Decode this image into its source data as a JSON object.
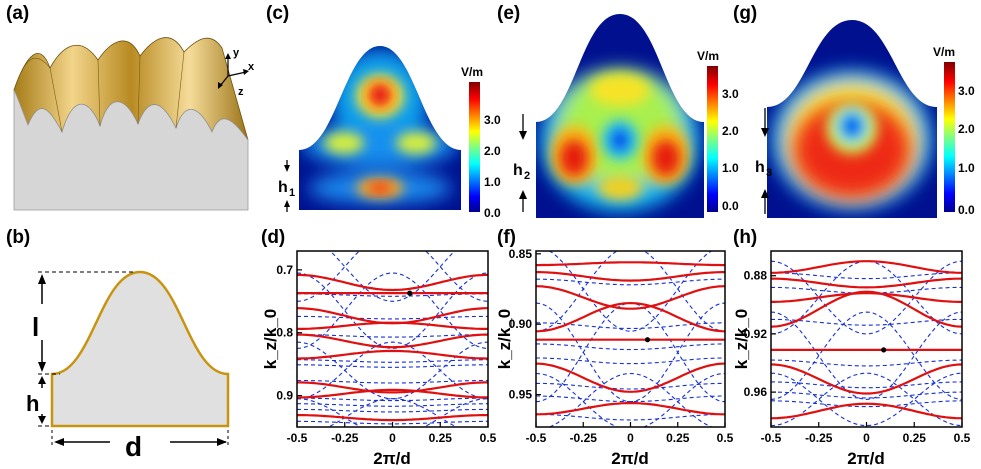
{
  "panel_labels": {
    "a": "(a)",
    "b": "(b)",
    "c": "(c)",
    "d": "(d)",
    "e": "(e)",
    "f": "(f)",
    "g": "(g)",
    "h": "(h)"
  },
  "axes_3d": {
    "x": "x",
    "y": "y",
    "z": "z"
  },
  "profile": {
    "l": "l",
    "h": "h",
    "d": "d"
  },
  "heights": {
    "h1_main": "h",
    "h1_sub": "1",
    "h2_main": "h",
    "h2_sub": "2",
    "h3_main": "h",
    "h3_sub": "3"
  },
  "colorbar": {
    "unit": "V/m",
    "ticks": [
      "3.0",
      "2.0",
      "1.0",
      "0.0"
    ]
  },
  "colors": {
    "red": "#e01010",
    "blue": "#1530d8",
    "gold": "#c8930e",
    "gray": "#d9d9d9"
  },
  "chart_data": [
    {
      "type": "line",
      "panel": "d",
      "title": "",
      "xlabel": "2π/d",
      "ylabel": "k_z/k_0",
      "x_ticks": [
        "-0.5",
        "-0.25",
        "0",
        "0.25",
        "0.5"
      ],
      "y_ticks": [
        "0.7",
        "0.8",
        "0.9"
      ],
      "xlim": [
        -0.5,
        0.5
      ],
      "ylim": [
        0.67,
        0.95
      ],
      "red_bands": [
        {
          "y0": 0.72,
          "a": 0.012,
          "s": -1
        },
        {
          "y0": 0.737,
          "a": 0.0,
          "s": 1
        },
        {
          "y0": 0.773,
          "a": 0.012,
          "s": -1
        },
        {
          "y0": 0.789,
          "a": 0.005,
          "s": 1
        },
        {
          "y0": 0.813,
          "a": 0.01,
          "s": -1
        },
        {
          "y0": 0.835,
          "a": 0.006,
          "s": 1
        },
        {
          "y0": 0.887,
          "a": 0.008,
          "s": -1
        },
        {
          "y0": 0.897,
          "a": 0.006,
          "s": 1
        },
        {
          "y0": 0.935,
          "a": 0.004,
          "s": -1
        }
      ],
      "blue_flat": [
        0.74,
        0.776,
        0.805,
        0.845,
        0.853,
        0.878,
        0.906,
        0.915,
        0.924,
        0.943
      ],
      "blue_cross": [
        {
          "c": 0.695,
          "a": 0.055
        },
        {
          "c": 0.765,
          "a": 0.06
        },
        {
          "c": 0.86,
          "a": 0.045
        },
        {
          "c": 0.935,
          "a": 0.03
        }
      ],
      "marker": {
        "x": 0.09,
        "y": 0.737
      }
    },
    {
      "type": "line",
      "panel": "f",
      "title": "",
      "xlabel": "2π/d",
      "ylabel": "k_z/k_0",
      "x_ticks": [
        "-0.5",
        "-0.25",
        "0",
        "0.25",
        "0.5"
      ],
      "y_ticks": [
        "0.85",
        "0.90",
        "0.95"
      ],
      "xlim": [
        -0.5,
        0.5
      ],
      "ylim": [
        0.848,
        0.973
      ],
      "red_bands": [
        {
          "y0": 0.857,
          "a": 0.001,
          "s": 1
        },
        {
          "y0": 0.866,
          "a": 0.003,
          "s": -1
        },
        {
          "y0": 0.881,
          "a": 0.008,
          "s": -1
        },
        {
          "y0": 0.895,
          "a": 0.01,
          "s": 1
        },
        {
          "y0": 0.911,
          "a": 0.0,
          "s": 1
        },
        {
          "y0": 0.938,
          "a": 0.01,
          "s": -1
        },
        {
          "y0": 0.96,
          "a": 0.004,
          "s": 1
        }
      ],
      "blue_flat": [
        0.87,
        0.901,
        0.916,
        0.926,
        0.944,
        0.953,
        0.966
      ],
      "blue_cross": [
        {
          "c": 0.875,
          "a": 0.03
        },
        {
          "c": 0.92,
          "a": 0.035
        },
        {
          "c": 0.955,
          "a": 0.02
        }
      ],
      "marker": {
        "x": 0.09,
        "y": 0.911
      }
    },
    {
      "type": "line",
      "panel": "h",
      "title": "",
      "xlabel": "2π/d",
      "ylabel": "k_z/k_0",
      "x_ticks": [
        "-0.5",
        "-0.25",
        "0",
        "0.25",
        "0.5"
      ],
      "y_ticks": [
        "0.88",
        "0.92",
        "0.96"
      ],
      "xlim": [
        -0.5,
        0.5
      ],
      "ylim": [
        0.863,
        0.984
      ],
      "red_bands": [
        {
          "y0": 0.874,
          "a": 0.004,
          "s": 1
        },
        {
          "y0": 0.885,
          "a": 0.003,
          "s": -1
        },
        {
          "y0": 0.895,
          "a": 0.003,
          "s": 1
        },
        {
          "y0": 0.903,
          "a": 0.012,
          "s": 1
        },
        {
          "y0": 0.931,
          "a": 0.0,
          "s": 1
        },
        {
          "y0": 0.951,
          "a": 0.01,
          "s": -1
        },
        {
          "y0": 0.973,
          "a": 0.005,
          "s": 1
        }
      ],
      "blue_flat": [
        0.88,
        0.89,
        0.912,
        0.94,
        0.955,
        0.962,
        0.968
      ],
      "blue_cross": [
        {
          "c": 0.895,
          "a": 0.025
        },
        {
          "c": 0.935,
          "a": 0.03
        },
        {
          "c": 0.965,
          "a": 0.018
        }
      ],
      "marker": {
        "x": 0.09,
        "y": 0.931
      }
    }
  ]
}
